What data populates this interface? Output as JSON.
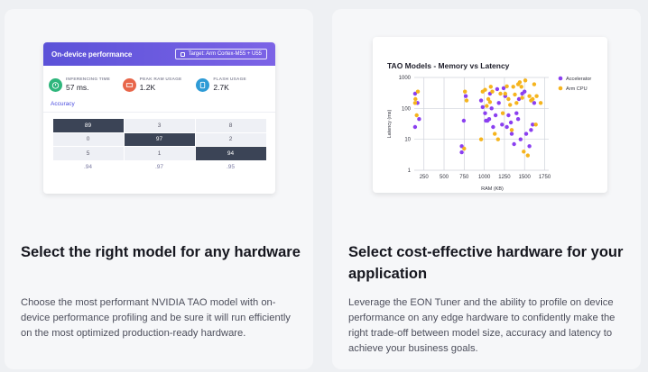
{
  "left_card": {
    "heading": "Select the right model for any hardware",
    "body": "Choose the most performant NVIDIA TAO model with on-device performance profiling and be sure it will run efficiently on the most optimized production-ready hardware.",
    "widget": {
      "title": "On-device performance",
      "target": "Target: Arm Cortex-M55 + U55",
      "metrics": [
        {
          "label": "INFERENCING TIME",
          "value": "57 ms.",
          "icon": "timer-icon",
          "color": "#2fb67c"
        },
        {
          "label": "PEAK RAM USAGE",
          "value": "1.2K",
          "icon": "ram-icon",
          "color": "#e8664a"
        },
        {
          "label": "FLASH USAGE",
          "value": "2.7K",
          "icon": "flash-icon",
          "color": "#2e9bd6"
        }
      ],
      "accuracy_label": "Accuracy",
      "matrix": [
        [
          "89",
          "3",
          "8"
        ],
        [
          "0",
          "97",
          "2"
        ],
        [
          "5",
          "1",
          "94"
        ]
      ],
      "totals": [
        ".94",
        ".97",
        ".95"
      ]
    }
  },
  "right_card": {
    "heading": "Select cost-effective hardware for your application",
    "body": "Leverage the EON Tuner and the ability to profile on device performance on any edge hardware to confidently make the right trade-off between model size, accuracy and latency to achieve your business goals.",
    "accent_colors": {
      "accelerator": "#8a3ff0",
      "arm_cpu": "#f5b41d"
    }
  },
  "chart_data": {
    "type": "scatter",
    "title": "TAO Models - Memory vs Latency",
    "xlabel": "RAM (KB)",
    "ylabel": "Latency (ms)",
    "x_ticks": [
      "250",
      "500",
      "750",
      "1000",
      "1250",
      "1500",
      "1750"
    ],
    "y_ticks": [
      "1",
      "10",
      "100",
      "1000"
    ],
    "xlim": [
      130,
      1800
    ],
    "ylim": [
      1,
      1000
    ],
    "y_scale": "log",
    "grid": true,
    "legend_position": "top-right",
    "series": [
      {
        "name": "Accelerator",
        "color": "#8a3ff0",
        "points": [
          [
            140,
            25
          ],
          [
            140,
            300
          ],
          [
            170,
            150
          ],
          [
            190,
            45
          ],
          [
            720,
            6
          ],
          [
            720,
            3.8
          ],
          [
            745,
            40
          ],
          [
            770,
            250
          ],
          [
            960,
            180
          ],
          [
            980,
            110
          ],
          [
            1010,
            70
          ],
          [
            1020,
            40
          ],
          [
            1040,
            40
          ],
          [
            1060,
            45
          ],
          [
            1070,
            300
          ],
          [
            1090,
            100
          ],
          [
            1110,
            25
          ],
          [
            1140,
            60
          ],
          [
            1160,
            420
          ],
          [
            1180,
            150
          ],
          [
            1220,
            30
          ],
          [
            1240,
            450
          ],
          [
            1260,
            250
          ],
          [
            1280,
            25
          ],
          [
            1300,
            60
          ],
          [
            1330,
            35
          ],
          [
            1340,
            15
          ],
          [
            1370,
            7
          ],
          [
            1400,
            70
          ],
          [
            1420,
            45
          ],
          [
            1430,
            200
          ],
          [
            1450,
            10
          ],
          [
            1470,
            300
          ],
          [
            1500,
            350
          ],
          [
            1520,
            15
          ],
          [
            1560,
            6
          ],
          [
            1580,
            20
          ],
          [
            1600,
            30
          ],
          [
            1620,
            150
          ]
        ]
      },
      {
        "name": "Arm CPU",
        "color": "#f5b41d",
        "points": [
          [
            140,
            150
          ],
          [
            145,
            200
          ],
          [
            160,
            60
          ],
          [
            175,
            350
          ],
          [
            750,
            5
          ],
          [
            760,
            350
          ],
          [
            780,
            180
          ],
          [
            960,
            10
          ],
          [
            980,
            350
          ],
          [
            1010,
            400
          ],
          [
            1030,
            120
          ],
          [
            1050,
            200
          ],
          [
            1070,
            160
          ],
          [
            1080,
            500
          ],
          [
            1100,
            350
          ],
          [
            1130,
            15
          ],
          [
            1170,
            10
          ],
          [
            1200,
            300
          ],
          [
            1230,
            70
          ],
          [
            1260,
            300
          ],
          [
            1280,
            520
          ],
          [
            1300,
            200
          ],
          [
            1320,
            130
          ],
          [
            1340,
            20
          ],
          [
            1360,
            500
          ],
          [
            1380,
            280
          ],
          [
            1400,
            150
          ],
          [
            1420,
            600
          ],
          [
            1440,
            700
          ],
          [
            1460,
            500
          ],
          [
            1470,
            220
          ],
          [
            1490,
            4
          ],
          [
            1510,
            800
          ],
          [
            1540,
            3
          ],
          [
            1560,
            250
          ],
          [
            1580,
            180
          ],
          [
            1600,
            200
          ],
          [
            1620,
            600
          ],
          [
            1640,
            30
          ],
          [
            1650,
            250
          ],
          [
            1700,
            150
          ]
        ]
      }
    ]
  }
}
